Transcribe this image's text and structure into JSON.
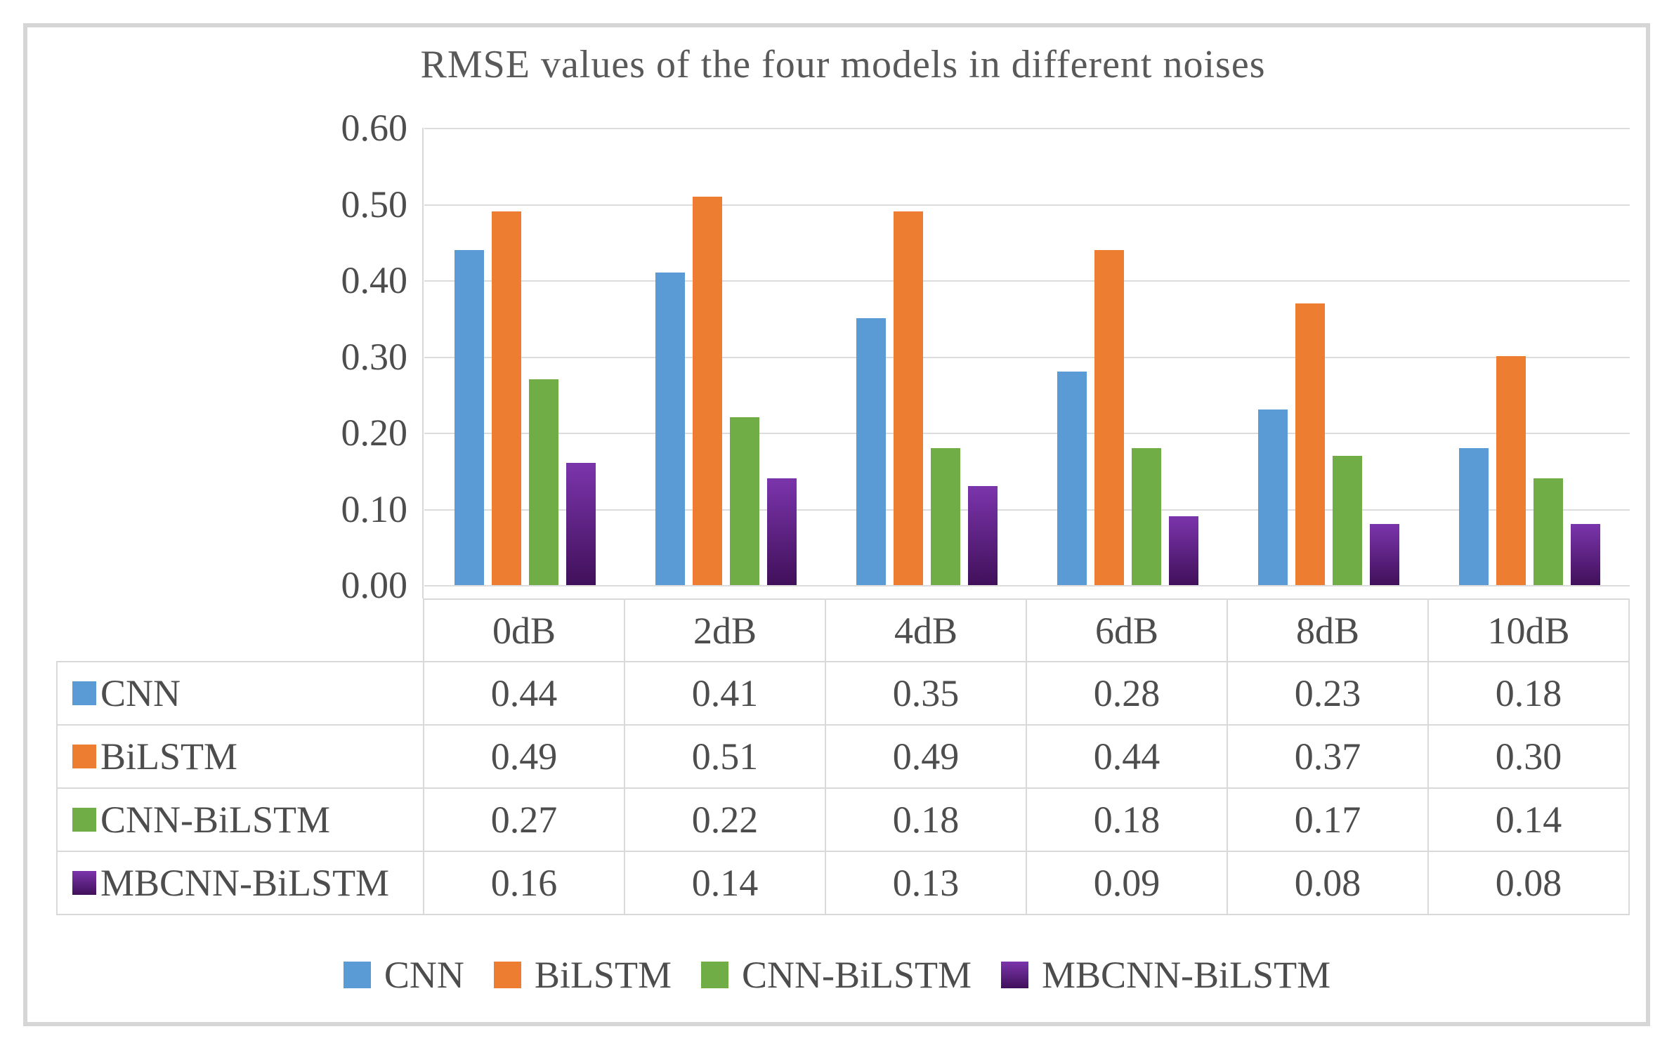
{
  "chart_data": {
    "type": "bar",
    "title": "RMSE values of the four models in different noises",
    "categories": [
      "0dB",
      "2dB",
      "4dB",
      "6dB",
      "8dB",
      "10dB"
    ],
    "series": [
      {
        "name": "CNN",
        "color": "#5B9BD5",
        "values": [
          0.44,
          0.41,
          0.35,
          0.28,
          0.23,
          0.18
        ]
      },
      {
        "name": "BiLSTM",
        "color": "#ED7D31",
        "values": [
          0.49,
          0.51,
          0.49,
          0.44,
          0.37,
          0.3
        ]
      },
      {
        "name": "CNN-BiLSTM",
        "color": "#70AD47",
        "values": [
          0.27,
          0.22,
          0.18,
          0.18,
          0.17,
          0.14
        ]
      },
      {
        "name": "MBCNN-BiLSTM",
        "color": "#7B35AC",
        "color_dark": "#41105A",
        "values": [
          0.16,
          0.14,
          0.13,
          0.09,
          0.08,
          0.08
        ]
      }
    ],
    "yticks": [
      "0.60",
      "0.50",
      "0.40",
      "0.30",
      "0.20",
      "0.10",
      "0.00"
    ],
    "ylim": [
      0,
      0.6
    ],
    "grid": true,
    "legend_position": "bottom",
    "value_decimals": 2,
    "table_shown": true
  }
}
